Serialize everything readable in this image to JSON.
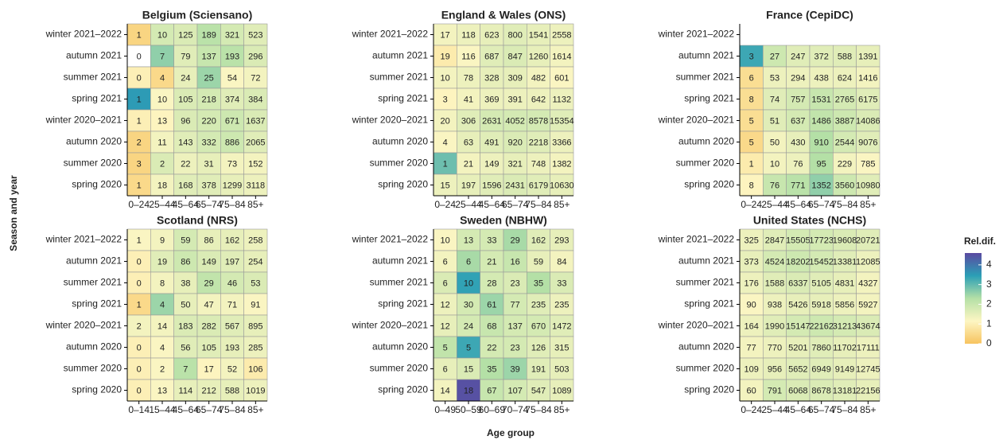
{
  "ylabel": "Season and year",
  "xlabel": "Age group",
  "colorbar": {
    "title": "Rel.dif.",
    "lim": [
      0,
      4.6
    ],
    "ticks": [
      0,
      1,
      2,
      3,
      4
    ],
    "colors": [
      "#f7c35f",
      "#fdf6c3",
      "#b4e0a6",
      "#2b9fb6",
      "#5b4aa1"
    ]
  },
  "chart_data": [
    {
      "type": "heatmap",
      "title": "Belgium (Sciensano)",
      "x": [
        "0–24",
        "25–44",
        "45–64",
        "65–74",
        "75–84",
        "85+"
      ],
      "y": [
        "winter 2021–2022",
        "autumn 2021",
        "summer 2021",
        "spring 2021",
        "winter 2020–2021",
        "autumn 2020",
        "summer 2020",
        "spring 2020"
      ],
      "values": [
        [
          1,
          10,
          125,
          189,
          321,
          523
        ],
        [
          0,
          7,
          79,
          137,
          193,
          296
        ],
        [
          0,
          4,
          24,
          25,
          54,
          72
        ],
        [
          1,
          10,
          105,
          218,
          374,
          384
        ],
        [
          1,
          13,
          96,
          220,
          671,
          1637
        ],
        [
          2,
          11,
          143,
          332,
          886,
          2065
        ],
        [
          3,
          2,
          22,
          31,
          73,
          152
        ],
        [
          1,
          18,
          168,
          378,
          1299,
          3118
        ]
      ],
      "z": [
        [
          0.4,
          1.8,
          1.7,
          2.2,
          1.8,
          1.6
        ],
        [
          null,
          2.6,
          1.6,
          2.0,
          2.2,
          1.7
        ],
        [
          1.0,
          0.5,
          1.5,
          2.5,
          1.2,
          1.3
        ],
        [
          3.5,
          1.2,
          1.7,
          1.8,
          1.6,
          1.7
        ],
        [
          1.0,
          1.1,
          1.7,
          1.8,
          1.9,
          1.7
        ],
        [
          0.4,
          1.3,
          1.6,
          1.8,
          1.9,
          1.6
        ],
        [
          0.4,
          1.7,
          1.4,
          1.5,
          1.3,
          1.3
        ],
        [
          0.5,
          1.3,
          1.6,
          1.6,
          1.5,
          1.4
        ]
      ]
    },
    {
      "type": "heatmap",
      "title": "England & Wales (ONS)",
      "x": [
        "0–24",
        "25–44",
        "45–64",
        "65–74",
        "75–84",
        "85+"
      ],
      "y": [
        "winter 2021–2022",
        "autumn 2021",
        "summer 2021",
        "spring 2021",
        "winter 2020–2021",
        "autumn 2020",
        "summer 2020",
        "spring 2020"
      ],
      "values": [
        [
          17,
          118,
          623,
          800,
          1541,
          2558
        ],
        [
          19,
          116,
          687,
          847,
          1260,
          1614
        ],
        [
          10,
          78,
          328,
          309,
          482,
          601
        ],
        [
          3,
          41,
          369,
          391,
          642,
          1132
        ],
        [
          20,
          306,
          2631,
          4052,
          8578,
          15354
        ],
        [
          4,
          63,
          491,
          920,
          2218,
          3366
        ],
        [
          1,
          21,
          149,
          321,
          748,
          1382
        ],
        [
          15,
          197,
          1596,
          2431,
          6179,
          10630
        ]
      ],
      "z": [
        [
          1.3,
          1.4,
          1.5,
          1.6,
          1.5,
          1.4
        ],
        [
          0.9,
          1.2,
          1.6,
          1.7,
          1.5,
          1.3
        ],
        [
          1.3,
          1.4,
          1.5,
          1.5,
          1.3,
          1.2
        ],
        [
          1.1,
          1.3,
          1.4,
          1.4,
          1.4,
          1.4
        ],
        [
          1.3,
          1.6,
          1.8,
          1.8,
          1.8,
          1.6
        ],
        [
          1.2,
          1.5,
          1.6,
          1.7,
          1.6,
          1.4
        ],
        [
          2.9,
          1.3,
          1.4,
          1.5,
          1.4,
          1.3
        ],
        [
          1.4,
          1.5,
          1.6,
          1.7,
          1.6,
          1.5
        ]
      ]
    },
    {
      "type": "heatmap",
      "title": "France (CepiDC)",
      "x": [
        "0–24",
        "25–44",
        "45–64",
        "65–74",
        "75–84",
        "85+"
      ],
      "y": [
        "winter 2021–2022",
        "autumn 2021",
        "summer 2021",
        "spring 2021",
        "winter 2020–2021",
        "autumn 2020",
        "summer 2020",
        "spring 2020"
      ],
      "values": [
        [
          null,
          null,
          null,
          null,
          null,
          null
        ],
        [
          3,
          27,
          247,
          372,
          588,
          1391
        ],
        [
          6,
          53,
          294,
          438,
          624,
          1416
        ],
        [
          8,
          74,
          757,
          1531,
          2765,
          6175
        ],
        [
          5,
          51,
          637,
          1486,
          3887,
          14086
        ],
        [
          5,
          50,
          430,
          910,
          2544,
          9076
        ],
        [
          1,
          10,
          76,
          95,
          229,
          785
        ],
        [
          8,
          76,
          771,
          1352,
          3560,
          10980
        ]
      ],
      "z": [
        [
          null,
          null,
          null,
          null,
          null,
          null
        ],
        [
          3.3,
          1.9,
          1.6,
          1.6,
          1.6,
          1.5
        ],
        [
          0.6,
          1.4,
          1.4,
          1.4,
          1.4,
          1.3
        ],
        [
          0.6,
          1.6,
          1.8,
          2.0,
          1.8,
          1.6
        ],
        [
          0.6,
          1.6,
          1.8,
          2.1,
          1.9,
          1.7
        ],
        [
          0.5,
          1.3,
          1.5,
          2.3,
          1.8,
          1.6
        ],
        [
          0.9,
          1.3,
          1.4,
          2.3,
          1.3,
          1.2
        ],
        [
          1.1,
          2.0,
          2.2,
          2.6,
          1.9,
          1.6
        ]
      ]
    },
    {
      "type": "heatmap",
      "title": "Scotland (NRS)",
      "x": [
        "0–14",
        "15–44",
        "45–64",
        "65–74",
        "75–84",
        "85+"
      ],
      "y": [
        "winter 2021–2022",
        "autumn 2021",
        "summer 2021",
        "spring 2021",
        "winter 2020–2021",
        "autumn 2020",
        "summer 2020",
        "spring 2020"
      ],
      "values": [
        [
          1,
          9,
          59,
          86,
          162,
          258
        ],
        [
          0,
          19,
          86,
          149,
          197,
          254
        ],
        [
          0,
          8,
          38,
          29,
          46,
          53
        ],
        [
          1,
          4,
          50,
          47,
          71,
          91
        ],
        [
          2,
          14,
          183,
          282,
          567,
          895
        ],
        [
          0,
          4,
          56,
          105,
          193,
          285
        ],
        [
          0,
          2,
          7,
          17,
          52,
          106
        ],
        [
          0,
          13,
          114,
          212,
          588,
          1019
        ]
      ],
      "z": [
        [
          1.2,
          1.3,
          1.8,
          1.5,
          1.5,
          1.4
        ],
        [
          1.0,
          1.6,
          1.9,
          1.7,
          1.6,
          1.5
        ],
        [
          1.0,
          1.3,
          1.5,
          2.1,
          1.8,
          1.7
        ],
        [
          0.5,
          2.5,
          1.5,
          1.3,
          1.3,
          1.2
        ],
        [
          1.3,
          1.3,
          1.7,
          1.7,
          1.6,
          1.5
        ],
        [
          1.0,
          1.2,
          1.6,
          1.6,
          1.5,
          1.4
        ],
        [
          1.0,
          1.2,
          2.2,
          1.1,
          1.3,
          0.9
        ],
        [
          1.0,
          1.2,
          1.5,
          1.5,
          1.5,
          1.4
        ]
      ]
    },
    {
      "type": "heatmap",
      "title": "Sweden (NBHW)",
      "x": [
        "0–49",
        "50–59",
        "60–69",
        "70–74",
        "75–84",
        "85+"
      ],
      "y": [
        "winter 2021–2022",
        "autumn 2021",
        "summer 2021",
        "spring 2021",
        "winter 2020–2021",
        "autumn 2020",
        "summer 2020",
        "spring 2020"
      ],
      "values": [
        [
          10,
          13,
          33,
          29,
          162,
          293
        ],
        [
          6,
          6,
          21,
          16,
          59,
          84
        ],
        [
          6,
          10,
          28,
          23,
          35,
          33
        ],
        [
          12,
          30,
          61,
          77,
          235,
          235
        ],
        [
          12,
          24,
          68,
          137,
          670,
          1472
        ],
        [
          5,
          5,
          22,
          23,
          126,
          315
        ],
        [
          6,
          15,
          35,
          39,
          191,
          503
        ],
        [
          14,
          18,
          67,
          107,
          547,
          1089
        ]
      ],
      "z": [
        [
          1.2,
          1.8,
          1.8,
          2.4,
          1.6,
          1.5
        ],
        [
          1.3,
          2.4,
          1.8,
          2.0,
          1.5,
          1.3
        ],
        [
          1.7,
          3.4,
          1.8,
          1.7,
          2.3,
          1.7
        ],
        [
          1.4,
          1.8,
          2.5,
          1.8,
          1.6,
          1.4
        ],
        [
          1.5,
          1.8,
          2.0,
          1.8,
          1.8,
          1.6
        ],
        [
          2.1,
          3.3,
          1.8,
          1.8,
          1.6,
          1.5
        ],
        [
          1.5,
          1.7,
          2.3,
          2.5,
          1.6,
          1.5
        ],
        [
          1.3,
          4.5,
          2.0,
          1.8,
          1.6,
          1.5
        ]
      ]
    },
    {
      "type": "heatmap",
      "title": "United States (NCHS)",
      "x": [
        "0–24",
        "25–44",
        "45–64",
        "65–74",
        "75–84",
        "85+"
      ],
      "y": [
        "winter 2021–2022",
        "autumn 2021",
        "summer 2021",
        "spring 2021",
        "winter 2020–2021",
        "autumn 2020",
        "summer 2020",
        "spring 2020"
      ],
      "values": [
        [
          325,
          2847,
          15505,
          17723,
          19608,
          20721
        ],
        [
          373,
          4524,
          18202,
          15452,
          13381,
          12085
        ],
        [
          176,
          1588,
          6337,
          5105,
          4831,
          4327
        ],
        [
          90,
          938,
          5426,
          5918,
          5856,
          5927
        ],
        [
          164,
          1990,
          15147,
          22162,
          31213,
          43674
        ],
        [
          77,
          770,
          5201,
          7860,
          11702,
          17111
        ],
        [
          109,
          956,
          5652,
          6949,
          9149,
          12745
        ],
        [
          60,
          791,
          6068,
          8678,
          13181,
          22156
        ]
      ],
      "z": [
        [
          1.4,
          1.6,
          1.8,
          1.8,
          1.7,
          1.6
        ],
        [
          1.5,
          1.8,
          1.9,
          1.8,
          1.6,
          1.4
        ],
        [
          1.4,
          1.6,
          1.7,
          1.6,
          1.5,
          1.3
        ],
        [
          1.2,
          1.4,
          1.5,
          1.5,
          1.4,
          1.3
        ],
        [
          1.4,
          1.6,
          1.8,
          1.9,
          1.8,
          1.7
        ],
        [
          1.3,
          1.4,
          1.5,
          1.6,
          1.5,
          1.4
        ],
        [
          1.4,
          1.5,
          1.6,
          1.6,
          1.5,
          1.4
        ],
        [
          1.3,
          1.8,
          1.7,
          1.7,
          1.6,
          1.5
        ]
      ]
    }
  ]
}
